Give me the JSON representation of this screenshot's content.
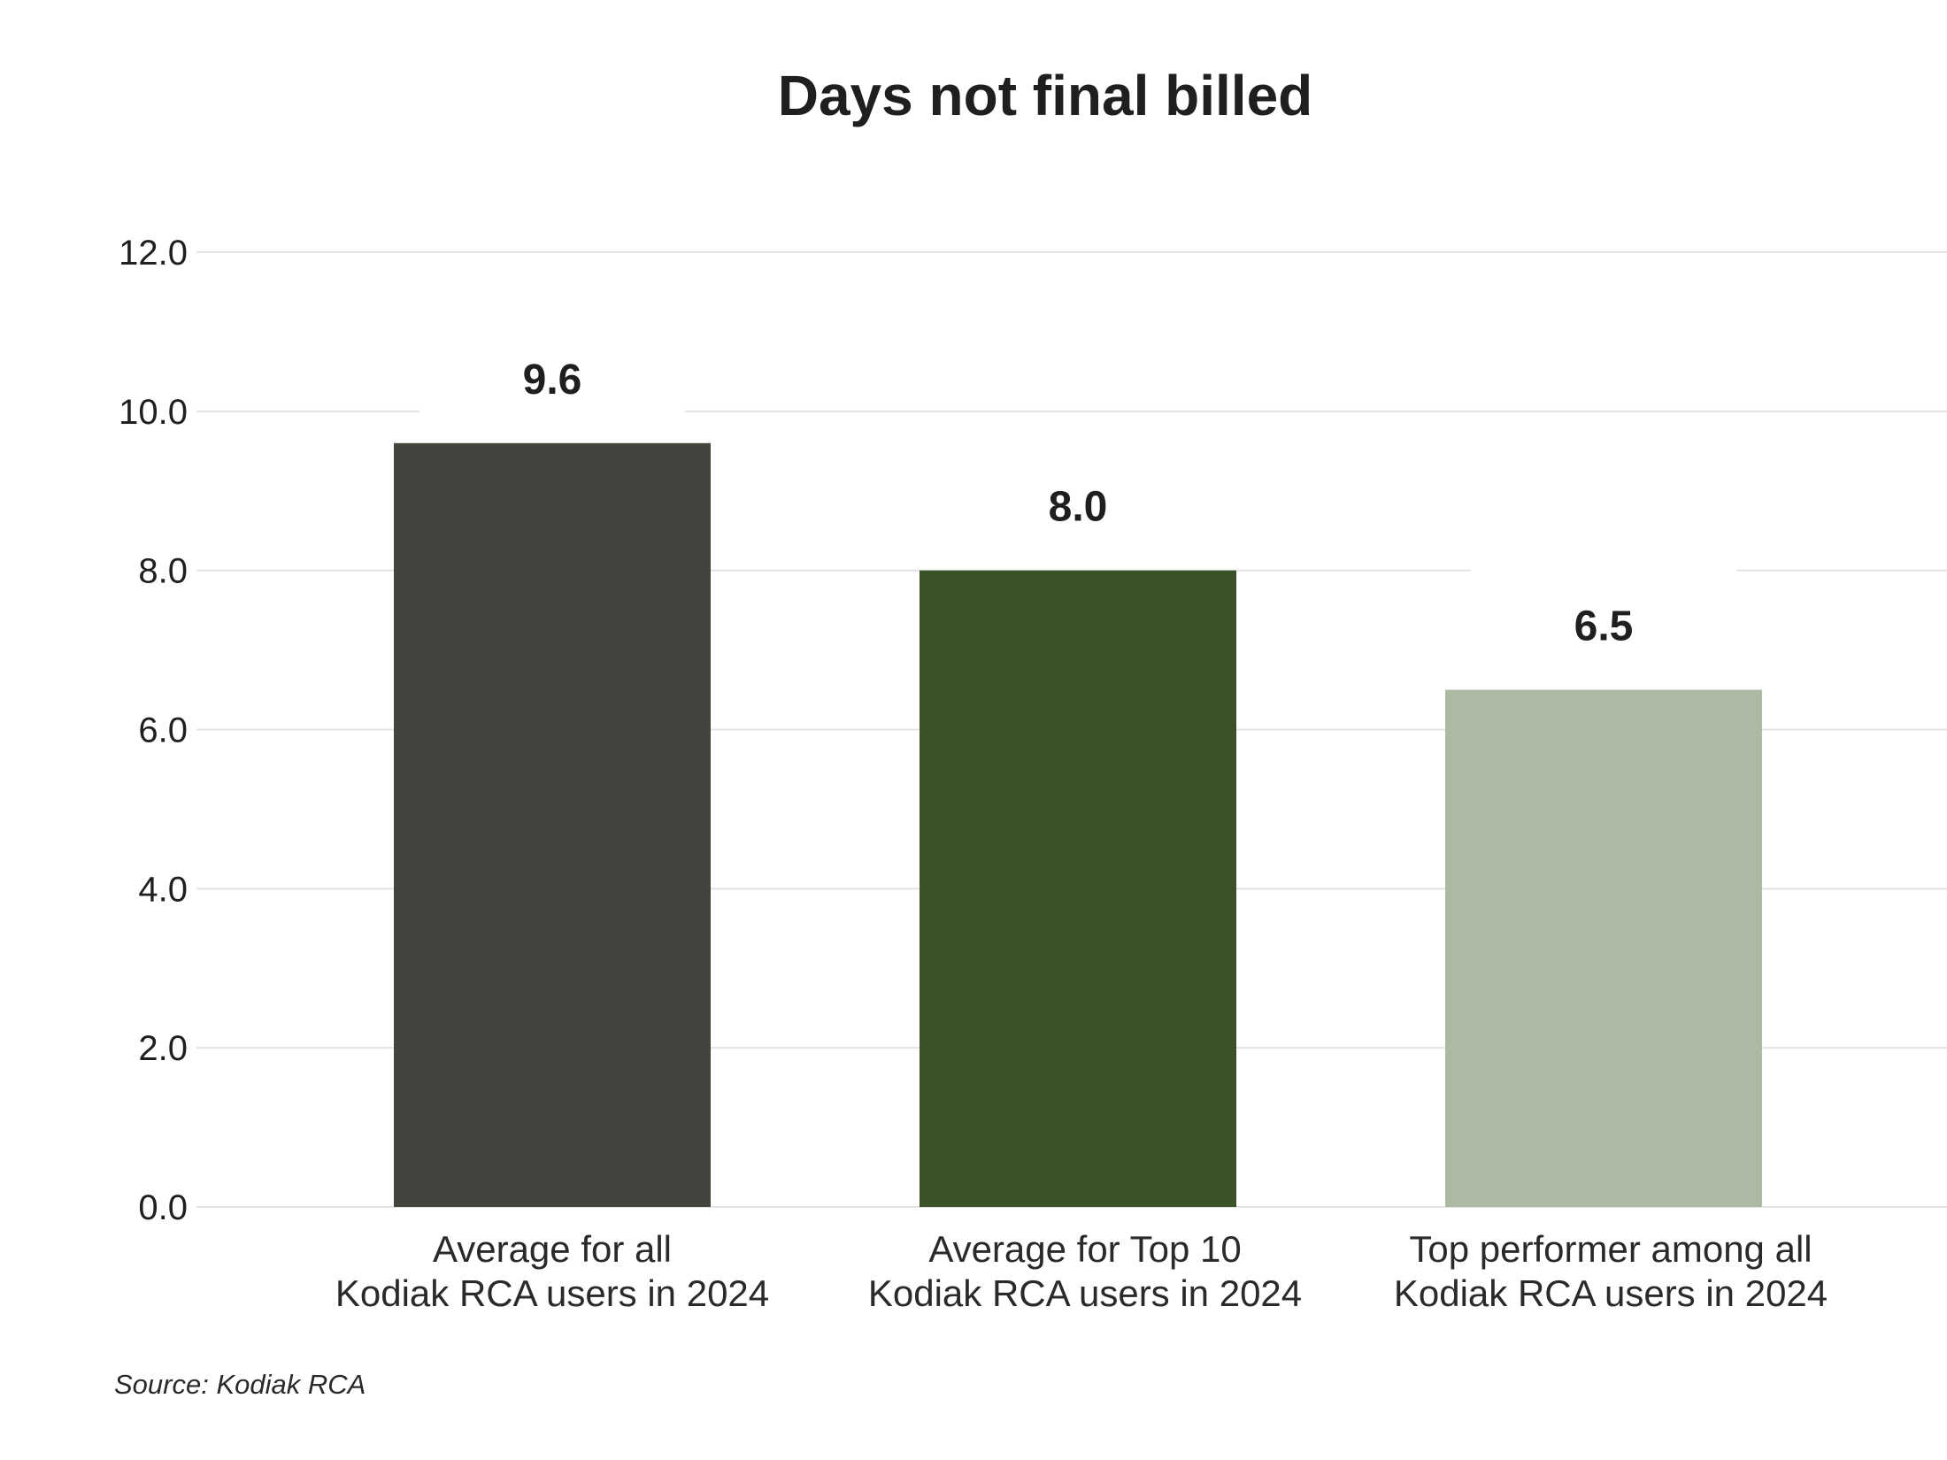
{
  "chart_data": {
    "type": "bar",
    "title": "Days not final billed",
    "categories": [
      [
        "Average for all",
        "Kodiak RCA users in 2024"
      ],
      [
        "Average for Top 10",
        "Kodiak RCA users in 2024"
      ],
      [
        "Top performer among all",
        "Kodiak RCA users in 2024"
      ]
    ],
    "values": [
      9.6,
      8.0,
      6.5
    ],
    "value_labels": [
      "9.6",
      "8.0",
      "6.5"
    ],
    "colors": [
      "#45433d",
      "#3b5126",
      "#adb9a2"
    ],
    "xlabel": "",
    "ylabel": "",
    "ylim": [
      0,
      12
    ],
    "yticks": [
      "0.0",
      "2.0",
      "4.0",
      "6.0",
      "8.0",
      "10.0",
      "12.0"
    ],
    "grid": true,
    "legend": "none",
    "source": "Source: Kodiak RCA"
  }
}
